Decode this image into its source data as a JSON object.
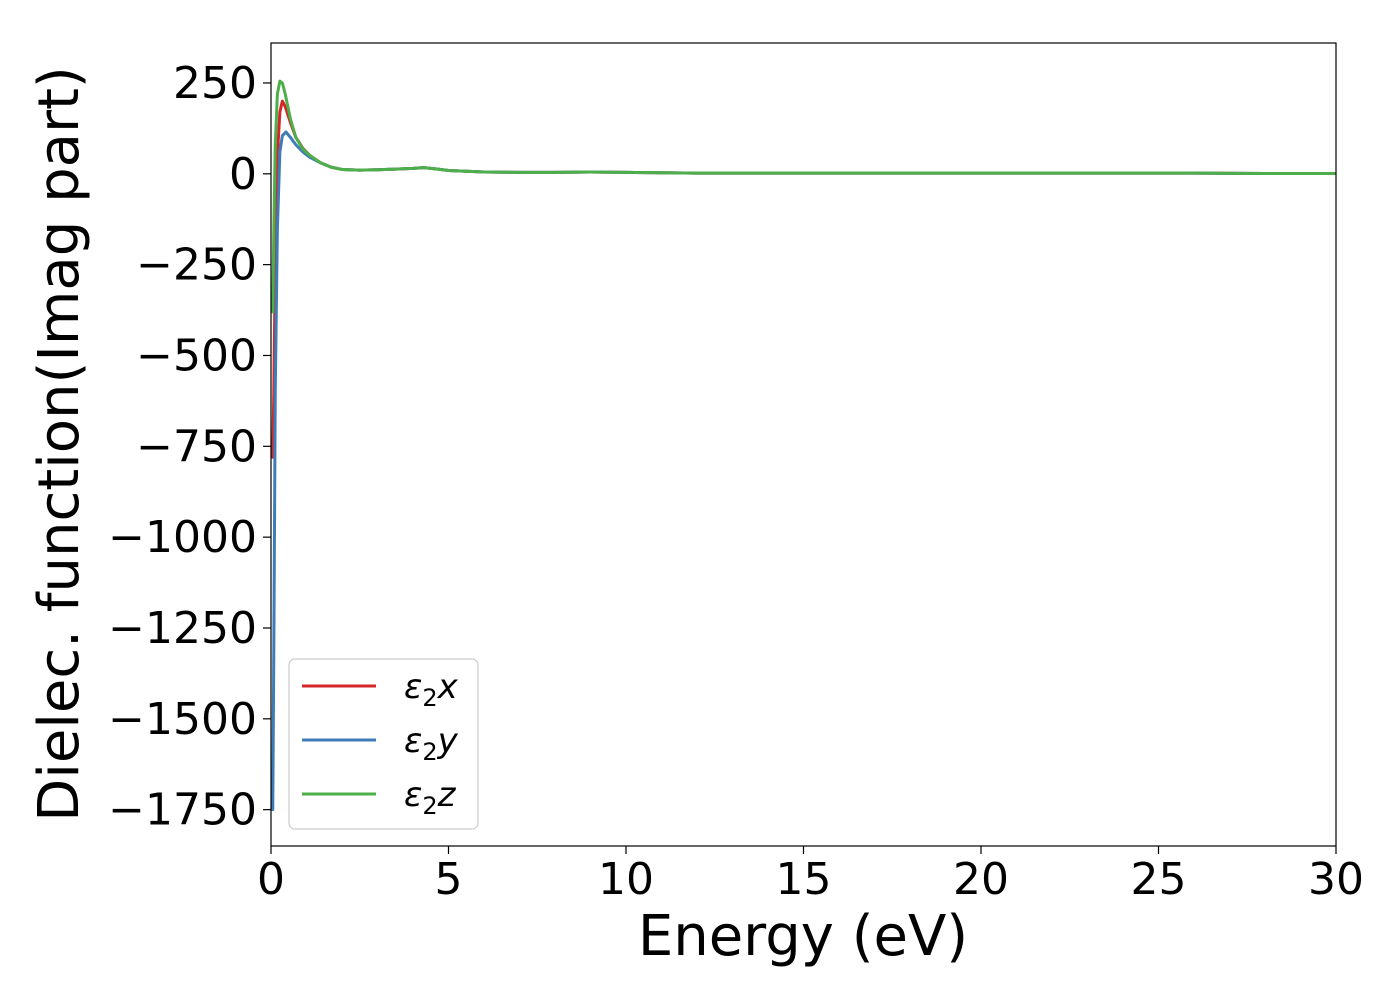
{
  "chart_data": {
    "type": "line",
    "title": "",
    "xlabel": "Energy (eV)",
    "ylabel": "Dielec. function(Imag part)",
    "xlim": [
      0,
      30
    ],
    "ylim": [
      -1850,
      360
    ],
    "xticks": [
      0,
      5,
      10,
      15,
      20,
      25,
      30
    ],
    "xtick_labels": [
      "0",
      "5",
      "10",
      "15",
      "20",
      "25",
      "30"
    ],
    "yticks": [
      250,
      0,
      -250,
      -500,
      -750,
      -1000,
      -1250,
      -1500,
      -1750
    ],
    "ytick_labels": [
      "250",
      "0",
      "−250",
      "−500",
      "−750",
      "−1000",
      "−1250",
      "−1500",
      "−1750"
    ],
    "grid": false,
    "legend_position": "lower-left",
    "series": [
      {
        "name": "ε₂x",
        "legend_main": "ε",
        "legend_sub": "2",
        "legend_suffix": "x",
        "color": "#d62728",
        "x": [
          0.05,
          0.08,
          0.12,
          0.18,
          0.25,
          0.32,
          0.4,
          0.55,
          0.7,
          0.9,
          1.1,
          1.4,
          1.7,
          2.0,
          2.5,
          3.0,
          3.5,
          4.0,
          4.3,
          4.7,
          5.0,
          5.5,
          6.0,
          7.0,
          8.0,
          9.0,
          10.0,
          11.0,
          12.0,
          14.0,
          16.0,
          18.0,
          20.0,
          22.0,
          24.0,
          26.0,
          28.0,
          30.0
        ],
        "y": [
          -780,
          -600,
          -250,
          50,
          170,
          200,
          185,
          140,
          100,
          70,
          50,
          30,
          18,
          12,
          10,
          11,
          13,
          15,
          17,
          13,
          9,
          7,
          5,
          4,
          4,
          5,
          4,
          3,
          2,
          2,
          2,
          2,
          2,
          2,
          2,
          2,
          1,
          1
        ]
      },
      {
        "name": "ε₂y",
        "legend_main": "ε",
        "legend_sub": "2",
        "legend_suffix": "y",
        "color": "#3e7cb8",
        "x": [
          0.05,
          0.08,
          0.12,
          0.18,
          0.25,
          0.32,
          0.42,
          0.55,
          0.7,
          0.9,
          1.1,
          1.4,
          1.7,
          2.0,
          2.5,
          3.0,
          3.5,
          4.0,
          4.3,
          4.7,
          5.0,
          5.5,
          6.0,
          7.0,
          8.0,
          9.0,
          10.0,
          11.0,
          12.0,
          14.0,
          16.0,
          18.0,
          20.0,
          22.0,
          24.0,
          26.0,
          28.0,
          30.0
        ],
        "y": [
          -1750,
          -1300,
          -600,
          -150,
          60,
          105,
          115,
          100,
          80,
          60,
          45,
          30,
          18,
          12,
          10,
          11,
          13,
          15,
          17,
          13,
          9,
          7,
          5,
          4,
          4,
          5,
          4,
          3,
          2,
          2,
          2,
          2,
          2,
          2,
          2,
          2,
          1,
          1
        ]
      },
      {
        "name": "ε₂z",
        "legend_main": "ε",
        "legend_sub": "2",
        "legend_suffix": "z",
        "color": "#4daf4a",
        "x": [
          0.05,
          0.08,
          0.12,
          0.18,
          0.25,
          0.32,
          0.4,
          0.55,
          0.7,
          0.9,
          1.1,
          1.4,
          1.7,
          2.0,
          2.5,
          3.0,
          3.5,
          4.0,
          4.3,
          4.7,
          5.0,
          5.5,
          6.0,
          7.0,
          8.0,
          9.0,
          10.0,
          11.0,
          12.0,
          14.0,
          16.0,
          18.0,
          20.0,
          22.0,
          24.0,
          26.0,
          28.0,
          30.0
        ],
        "y": [
          -380,
          -150,
          80,
          220,
          255,
          250,
          220,
          150,
          100,
          68,
          50,
          30,
          18,
          12,
          10,
          11,
          13,
          15,
          17,
          13,
          9,
          7,
          5,
          4,
          4,
          5,
          4,
          3,
          2,
          2,
          2,
          2,
          2,
          2,
          2,
          2,
          1,
          1
        ]
      }
    ]
  }
}
